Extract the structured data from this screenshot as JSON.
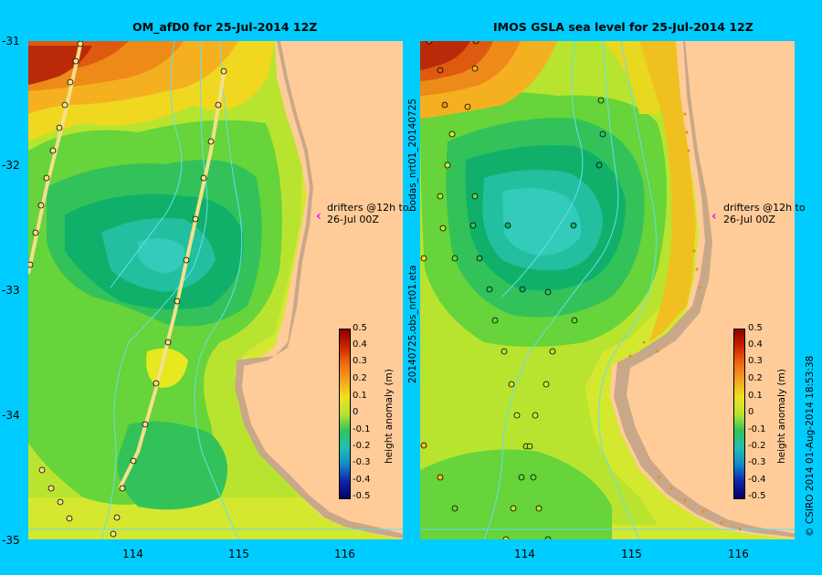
{
  "panels": [
    {
      "title": "OM_afD0 for 25-Jul-2014 12Z"
    },
    {
      "title": "IMOS GSLA sea level  for 25-Jul-2014 12Z"
    }
  ],
  "y_ticks": [
    "-31",
    "-32",
    "-33",
    "-34",
    "-35"
  ],
  "x_ticks": [
    "114",
    "115",
    "116"
  ],
  "colorbar": {
    "ticks": [
      "0.5",
      "0.4",
      "0.3",
      "0.2",
      "0.1",
      "0",
      "-0.1",
      "-0.2",
      "-0.3",
      "-0.4",
      "-0.5"
    ],
    "label": "height anomaly (m)"
  },
  "drifter_note": {
    "line1": "drifters @12h to",
    "line2": "26-Jul 00Z",
    "arrow_color": "#ff00ff"
  },
  "side_label": "20140725.obs_nrt01.eta",
  "side_label2": "bodas_nrt01_20140725",
  "credit": "© CSIRO 2014   01-Aug-2014 18:53:38",
  "colors": {
    "background": "#00ccff",
    "land": "#ffcc99",
    "shelf": "#c8a888",
    "river": "#66ddee"
  }
}
